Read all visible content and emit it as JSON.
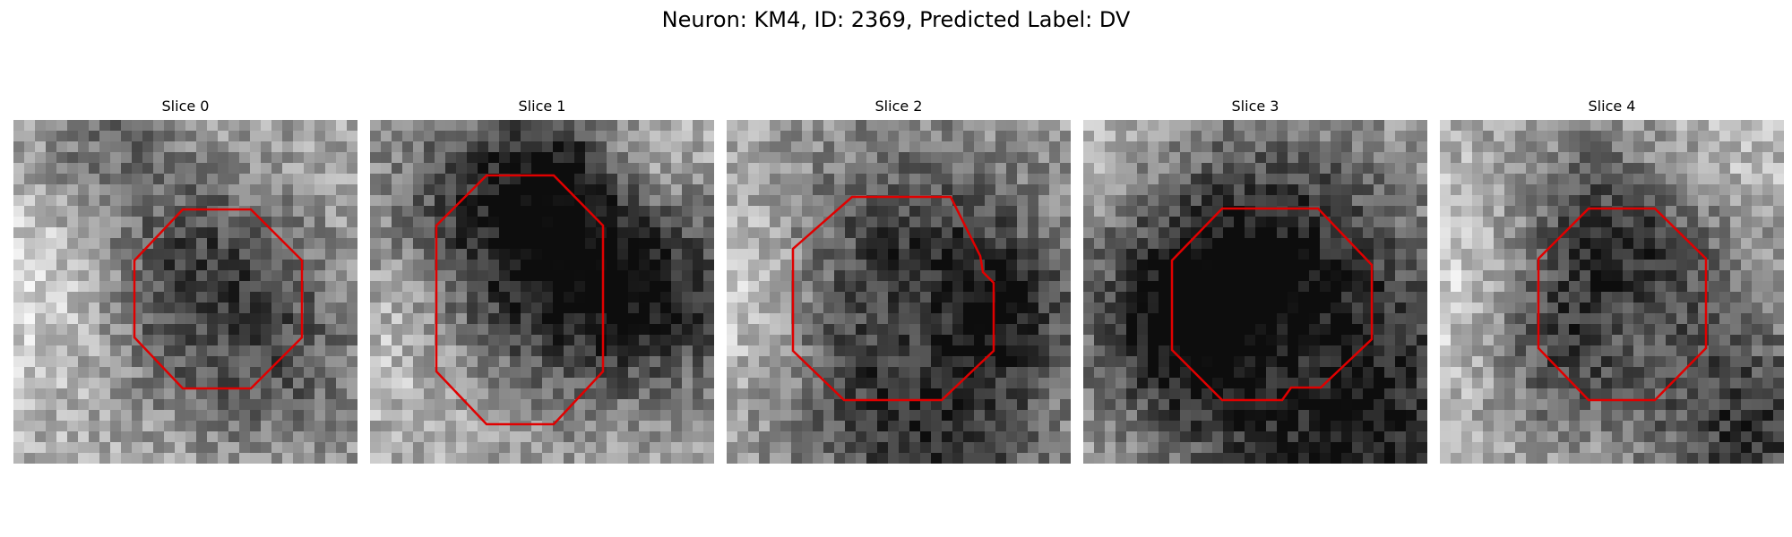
{
  "figure": {
    "title": "Neuron: KM4, ID: 2369, Predicted Label: DV",
    "outline_color": "#e00000"
  },
  "panels": [
    {
      "title": "Slice 0",
      "image": "grayscale-microscopy-slice"
    },
    {
      "title": "Slice 1",
      "image": "grayscale-microscopy-slice"
    },
    {
      "title": "Slice 2",
      "image": "grayscale-microscopy-slice"
    },
    {
      "title": "Slice 3",
      "image": "grayscale-microscopy-slice"
    },
    {
      "title": "Slice 4",
      "image": "grayscale-microscopy-slice"
    }
  ]
}
